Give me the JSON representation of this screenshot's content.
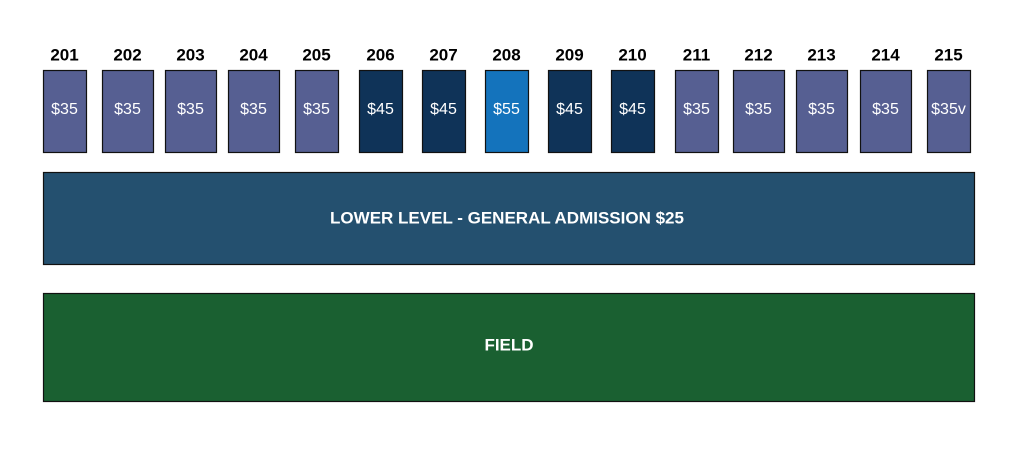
{
  "sections": [
    {
      "number": "201",
      "price": "$35"
    },
    {
      "number": "202",
      "price": "$35"
    },
    {
      "number": "203",
      "price": "$35"
    },
    {
      "number": "204",
      "price": "$35"
    },
    {
      "number": "205",
      "price": "$35"
    },
    {
      "number": "206",
      "price": "$45"
    },
    {
      "number": "207",
      "price": "$45"
    },
    {
      "number": "208",
      "price": "$55"
    },
    {
      "number": "209",
      "price": "$45"
    },
    {
      "number": "210",
      "price": "$45"
    },
    {
      "number": "211",
      "price": "$35"
    },
    {
      "number": "212",
      "price": "$35"
    },
    {
      "number": "213",
      "price": "$35"
    },
    {
      "number": "214",
      "price": "$35"
    },
    {
      "number": "215",
      "price": "$35v"
    }
  ],
  "lower_level": {
    "label": "LOWER LEVEL - GENERAL ADMISSION $25"
  },
  "field": {
    "label": "FIELD"
  }
}
